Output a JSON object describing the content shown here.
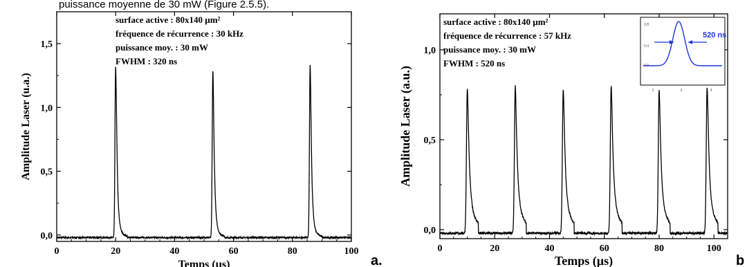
{
  "page": {
    "top_caption": "puissance moyenne de 30 mW (Figure 2.5.5)."
  },
  "chart_data": [
    {
      "type": "line",
      "panel_label": "a.",
      "xlabel": "Temps (µs)",
      "ylabel": "Amplitude Laser (u.a.)",
      "xlim": [
        0,
        100
      ],
      "ylim": [
        -0.05,
        1.75
      ],
      "x_ticks": [
        0,
        20,
        40,
        60,
        80,
        100
      ],
      "x_tick_labels": [
        "0",
        "20",
        "40",
        "60",
        "80",
        "100"
      ],
      "y_ticks": [
        0.0,
        0.5,
        1.0,
        1.5
      ],
      "y_tick_labels": [
        "0,0",
        "0,5",
        "1,0",
        "1,5"
      ],
      "grid": false,
      "baseline": -0.02,
      "pulses": [
        {
          "x": 20.0,
          "amplitude": 1.34
        },
        {
          "x": 53.0,
          "amplitude": 1.31
        },
        {
          "x": 86.0,
          "amplitude": 1.35
        }
      ],
      "annotations": [
        "surface active : 80x140 µm²",
        "fréquence de récurrence : 30 kHz",
        "puissance moy. : 30 mW",
        "FWHM : 320 ns"
      ]
    },
    {
      "type": "line",
      "panel_label": "b",
      "xlabel": "Temps (µs)",
      "ylabel": "Amplitude Laser (a.u.)",
      "xlim": [
        0,
        105
      ],
      "ylim": [
        -0.05,
        1.2
      ],
      "x_ticks": [
        0,
        20,
        40,
        60,
        80,
        100
      ],
      "x_tick_labels": [
        "0",
        "20",
        "40",
        "60",
        "80",
        "100"
      ],
      "y_ticks": [
        0.0,
        0.5,
        1.0
      ],
      "y_tick_labels": [
        "0,0",
        "0,5",
        "1,0"
      ],
      "grid": false,
      "baseline": -0.02,
      "pulses": [
        {
          "x": 10.0,
          "amplitude": 0.8
        },
        {
          "x": 27.5,
          "amplitude": 0.82
        },
        {
          "x": 45.0,
          "amplitude": 0.8
        },
        {
          "x": 62.5,
          "amplitude": 0.82
        },
        {
          "x": 80.0,
          "amplitude": 0.8
        },
        {
          "x": 97.5,
          "amplitude": 0.81
        }
      ],
      "annotations": [
        "surface active : 80x140 µm²",
        "fréquence de récurrence : 57 kHz",
        "puissance moy. : 30 mW",
        "FWHM : 520 ns"
      ],
      "inset": {
        "label": "520 ns",
        "color": "#1a33dd",
        "x_tick_labels": [
          "2",
          "3",
          "4"
        ],
        "y_tick_labels": [
          "0,0",
          "0,4",
          "0,8"
        ]
      }
    }
  ]
}
